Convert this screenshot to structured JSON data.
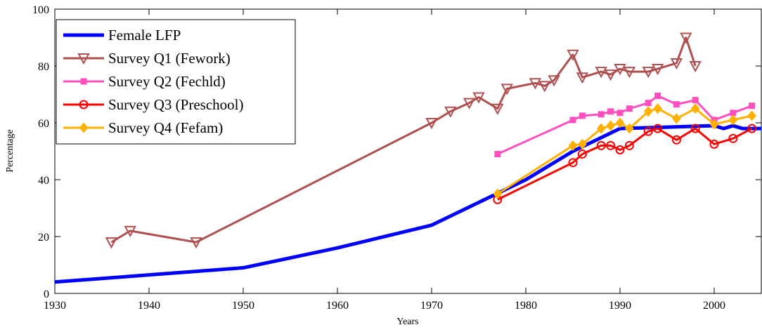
{
  "chart_data": {
    "type": "line",
    "xlabel": "Years",
    "ylabel": "Percentage",
    "xlim": [
      1930,
      2005
    ],
    "xticks": [
      1930,
      1940,
      1950,
      1960,
      1970,
      1980,
      1990,
      2000
    ],
    "ylim": [
      0,
      100
    ],
    "yticks": [
      0,
      20,
      40,
      60,
      80,
      100
    ],
    "legend": "upper left",
    "series": [
      {
        "name": "Female LFP",
        "color": "#0000ff",
        "marker": "none",
        "x": [
          1930,
          1940,
          1950,
          1960,
          1970,
          1980,
          1985,
          1990,
          1995,
          2000,
          2001,
          2002,
          2003,
          2004,
          2005
        ],
        "values": [
          4,
          6.5,
          9,
          16,
          24,
          40,
          50,
          58,
          58.5,
          59,
          58,
          59,
          58,
          58,
          58
        ]
      },
      {
        "name": "Survey Q1 (Fework)",
        "color": "#b04f4f",
        "marker": "triangle-down",
        "x": [
          1936,
          1938,
          1945,
          1970,
          1972,
          1974,
          1975,
          1977,
          1978,
          1981,
          1982,
          1983,
          1985,
          1986,
          1988,
          1989,
          1990,
          1991,
          1993,
          1994,
          1996,
          1997,
          1998
        ],
        "values": [
          18,
          22,
          18,
          60,
          64,
          67,
          69,
          65,
          72,
          74,
          73,
          75,
          84,
          76,
          78,
          77,
          79,
          78,
          78,
          79,
          81,
          90,
          80
        ]
      },
      {
        "name": "Survey Q2 (Fechld)",
        "color": "#ff4fbf",
        "marker": "square",
        "x": [
          1977,
          1985,
          1986,
          1988,
          1989,
          1990,
          1991,
          1993,
          1994,
          1996,
          1998,
          2000,
          2002,
          2004
        ],
        "values": [
          49,
          61,
          62.5,
          63,
          64,
          63.5,
          65,
          67,
          69.5,
          66.5,
          68,
          61,
          63.5,
          66
        ]
      },
      {
        "name": "Survey Q3 (Preschool)",
        "color": "#ff0000",
        "marker": "circle",
        "x": [
          1977,
          1985,
          1986,
          1988,
          1989,
          1990,
          1991,
          1993,
          1994,
          1996,
          1998,
          2000,
          2002,
          2004
        ],
        "values": [
          33,
          46,
          49,
          52,
          52,
          50.5,
          52,
          57,
          58,
          54,
          58,
          52.5,
          54.5,
          58
        ]
      },
      {
        "name": "Survey Q4 (Fefam)",
        "color": "#ffb000",
        "marker": "diamond",
        "x": [
          1977,
          1985,
          1986,
          1988,
          1989,
          1990,
          1991,
          1993,
          1994,
          1996,
          1998,
          2000,
          2002,
          2004
        ],
        "values": [
          35,
          52,
          52.5,
          58,
          59,
          60,
          58,
          64,
          65,
          61.5,
          65,
          59.5,
          61,
          62.5
        ]
      }
    ]
  }
}
